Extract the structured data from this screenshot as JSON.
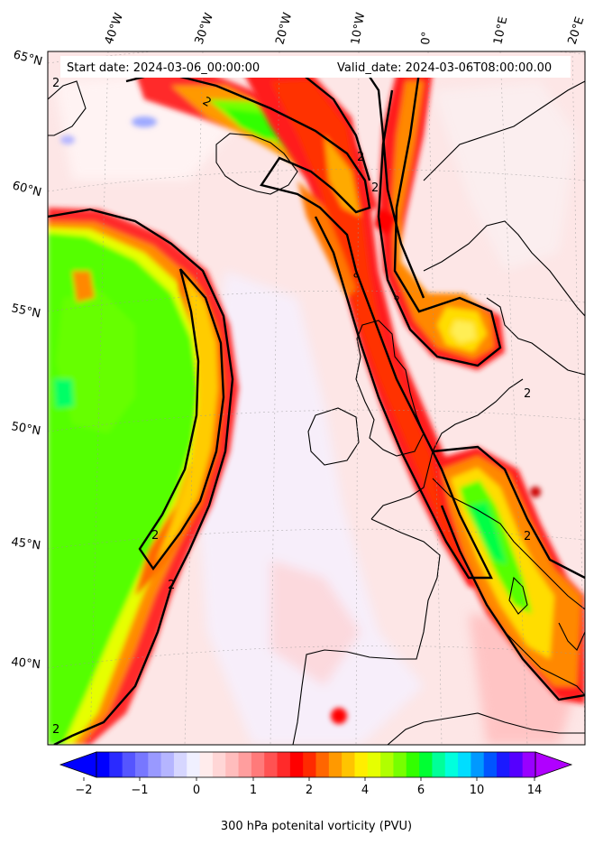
{
  "header": {
    "start_date": "Start date: 2024-03-06_00:00:00",
    "valid_date": "Valid_date: 2024-03-06T08:00:00.00"
  },
  "map": {
    "lon_labels": [
      "40°W",
      "30°W",
      "20°W",
      "10°W",
      "0°",
      "10°E",
      "20°E"
    ],
    "lat_labels": [
      "65°N",
      "60°N",
      "55°N",
      "50°N",
      "45°N",
      "40°N"
    ],
    "contour_label": "2",
    "background_color": "#fde8e8"
  },
  "colorbar": {
    "ticks": [
      "−2",
      "−1",
      "0",
      "1",
      "2",
      "4",
      "6",
      "10",
      "14"
    ],
    "label": "300 hPa potenital vorticity (PVU)",
    "colors": [
      "#0000ff",
      "#2a2aff",
      "#5555ff",
      "#7777ff",
      "#9999ff",
      "#b5b5ff",
      "#d6d6ff",
      "#f0f0ff",
      "#ffecec",
      "#ffd6d6",
      "#ffbdbd",
      "#ff9e9e",
      "#ff7a7a",
      "#ff5252",
      "#ff2a2a",
      "#ff0000",
      "#ff2a00",
      "#ff6600",
      "#ff9900",
      "#ffc400",
      "#ffee00",
      "#e6ff00",
      "#b0ff00",
      "#77ff00",
      "#33ff00",
      "#00ff33",
      "#00ff99",
      "#00ffdd",
      "#00ddff",
      "#0099ff",
      "#0055ff",
      "#1a1aff",
      "#5500ff",
      "#9900ff"
    ],
    "under_color": "#0000ff",
    "over_color": "#b000ff"
  }
}
